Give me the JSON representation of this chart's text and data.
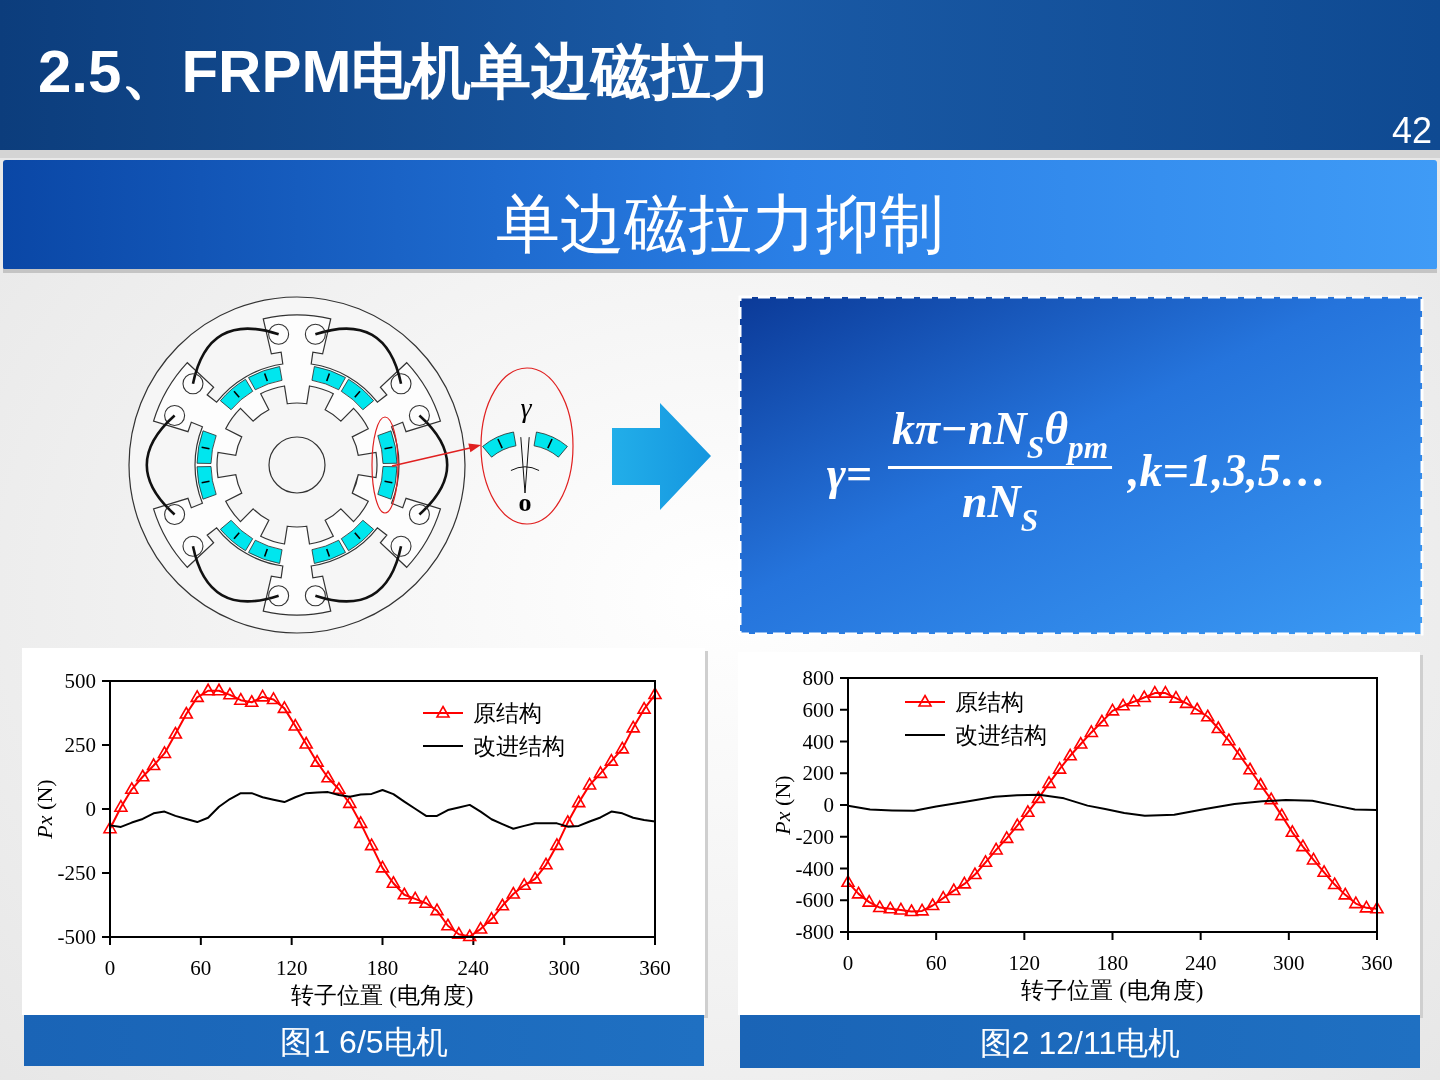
{
  "chart_data": [
    {
      "type": "other",
      "title": "2.5、FRPM电机单边磁拉力",
      "subtitle": "单边磁拉力抑制",
      "annotations": [
        "42"
      ]
    },
    {
      "type": "other",
      "annotations": [
        "γ",
        "o"
      ]
    },
    {
      "type": "other",
      "annotations": [
        "γ=",
        "kπ−nN$_{S}$θ$_{pm}$",
        "nN$_{S}$",
        ",k=1,3,5…"
      ]
    },
    {
      "type": "line",
      "title": "图1 6/5电机",
      "xlabel": "转子位置 (电角度)",
      "ylabel": "Px (N)",
      "x": [
        0,
        7.2,
        14.4,
        21.6,
        28.8,
        36,
        43.2,
        50.4,
        57.6,
        64.8,
        72,
        79.2,
        86.4,
        93.6,
        100.8,
        108,
        115.2,
        122.4,
        129.6,
        136.8,
        144,
        151.2,
        158.4,
        165.6,
        172.8,
        180,
        187.2,
        194.4,
        201.6,
        208.8,
        216,
        223.2,
        230.4,
        237.6,
        244.8,
        252,
        259.2,
        266.4,
        273.6,
        280.8,
        288,
        295.2,
        302.4,
        309.6,
        316.8,
        324,
        331.2,
        338.4,
        345.6,
        352.8,
        360
      ],
      "xlim": [
        0,
        360
      ],
      "xticks": [
        0,
        60,
        120,
        180,
        240,
        300,
        360
      ],
      "ylim": [
        -500,
        500
      ],
      "yticks": [
        -500,
        -250,
        0,
        250,
        500
      ],
      "legend": "top right",
      "series": [
        {
          "name": "原结构",
          "color": "#ff0000",
          "marker": "triangle",
          "values": [
            -77,
            7,
            77,
            126,
            170,
            217,
            293,
            371,
            436,
            462,
            462,
            446,
            425,
            417,
            438,
            428,
            393,
            324,
            254,
            183,
            122,
            77,
            22,
            -56,
            -143,
            -230,
            -290,
            -335,
            -351,
            -368,
            -397,
            -456,
            -489,
            -498,
            -469,
            -430,
            -378,
            -332,
            -298,
            -273,
            -218,
            -142,
            -52,
            25,
            94,
            139,
            187,
            235,
            317,
            390,
            447
          ]
        },
        {
          "name": "改进结构",
          "color": "#000000",
          "values": [
            -64,
            -70,
            -53,
            -39,
            -17,
            -10,
            -27,
            -39,
            -51,
            -34,
            9,
            39,
            62,
            62,
            46,
            36,
            27,
            46,
            62,
            64,
            66,
            55,
            48,
            57,
            59,
            74,
            58,
            29,
            1,
            -27,
            -27,
            -4,
            6,
            16,
            -10,
            -40,
            -59,
            -77,
            -66,
            -56,
            -56,
            -56,
            -69,
            -66,
            -49,
            -33,
            -10,
            -17,
            -34,
            -43,
            -49
          ]
        }
      ]
    },
    {
      "type": "line",
      "title": "图2 12/11电机",
      "xlabel": "转子位置 (电角度)",
      "ylabel": "Px (N)",
      "x": [
        0,
        7.2,
        14.4,
        21.6,
        28.8,
        36,
        43.2,
        50.4,
        57.6,
        64.8,
        72,
        79.2,
        86.4,
        93.6,
        100.8,
        108,
        115.2,
        122.4,
        129.6,
        136.8,
        144,
        151.2,
        158.4,
        165.6,
        172.8,
        180,
        187.2,
        194.4,
        201.6,
        208.8,
        216,
        223.2,
        230.4,
        237.6,
        244.8,
        252,
        259.2,
        266.4,
        273.6,
        280.8,
        288,
        295.2,
        302.4,
        309.6,
        316.8,
        324,
        331.2,
        338.4,
        345.6,
        352.8,
        360
      ],
      "xlim": [
        0,
        360
      ],
      "xticks": [
        0,
        60,
        120,
        180,
        240,
        300,
        360
      ],
      "ylim": [
        -800,
        800
      ],
      "yticks": [
        -800,
        -600,
        -400,
        -200,
        0,
        200,
        400,
        600,
        800
      ],
      "legend": "top left",
      "series": [
        {
          "name": "原结构",
          "color": "#ff0000",
          "marker": "triangle",
          "values": [
            -487,
            -560,
            -612,
            -646,
            -654,
            -661,
            -671,
            -667,
            -633,
            -587,
            -539,
            -497,
            -438,
            -361,
            -283,
            -210,
            -130,
            -46,
            42,
            136,
            226,
            310,
            384,
            457,
            524,
            593,
            625,
            650,
            677,
            705,
            705,
            673,
            640,
            600,
            556,
            482,
            405,
            315,
            222,
            126,
            34,
            -67,
            -172,
            -262,
            -346,
            -424,
            -501,
            -566,
            -621,
            -648,
            -654
          ]
        },
        {
          "name": "改进结构",
          "color": "#000000",
          "x": [
            0,
            15,
            30,
            45,
            60,
            80,
            100,
            115,
            130,
            147,
            163,
            175,
            188,
            202,
            222,
            243,
            263,
            282,
            298,
            316,
            332,
            345,
            360
          ],
          "values": [
            -5,
            -29,
            -34,
            -36,
            -10,
            20,
            52,
            62,
            65,
            42,
            -4,
            -25,
            -50,
            -67,
            -61,
            -25,
            6,
            23,
            31,
            27,
            -4,
            -29,
            -31
          ]
        }
      ]
    }
  ]
}
